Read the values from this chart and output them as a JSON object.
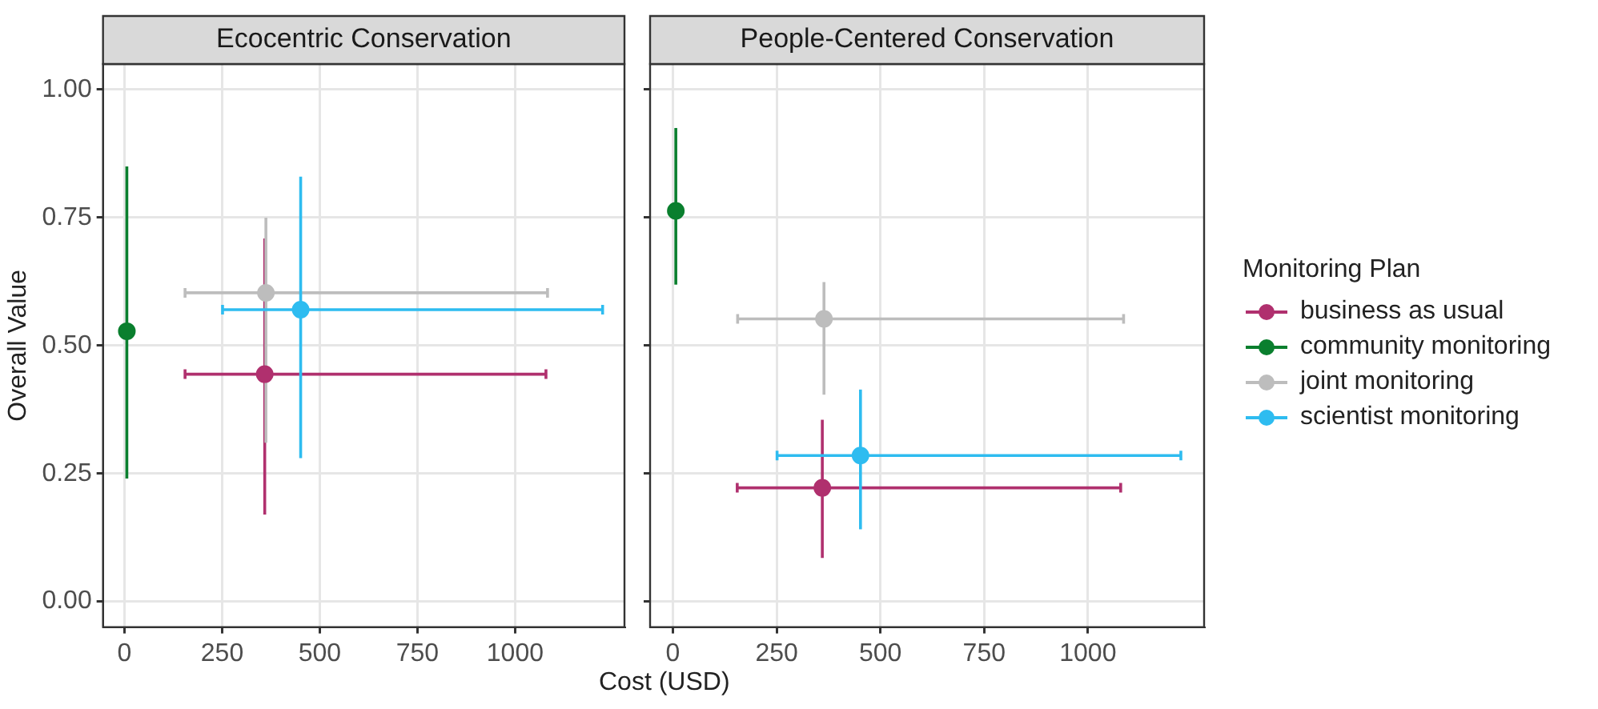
{
  "chart_data": [
    {
      "type": "scatter",
      "title": "Ecocentric Conservation",
      "xlabel": "Cost (USD)",
      "legend": "right",
      "legend_title": "Monitoring Plan",
      "ylabel": "Overall Value",
      "xlim": [
        -55,
        1280
      ],
      "ylim": [
        -0.05,
        1.05
      ],
      "xticks": [
        0,
        250,
        500,
        750,
        1000
      ],
      "yticks": [
        {
          "value": 0,
          "label": "0.00"
        },
        {
          "value": 0.25,
          "label": "0.25"
        },
        {
          "value": 0.5,
          "label": "0.50"
        },
        {
          "value": 0.75,
          "label": "0.75"
        },
        {
          "value": 1,
          "label": "1.00"
        }
      ],
      "grid": true,
      "marker": "circle",
      "series": [
        {
          "name": "business as usual",
          "color": "#b0306e",
          "x": [
            359
          ],
          "values": [
            0.444
          ],
          "errors": [
            [
              0.17,
              0.709
            ]
          ],
          "xerrors": [
            [
              155,
              1079
            ]
          ]
        },
        {
          "name": "community monitoring",
          "color": "#0a7f2e",
          "x": [
            6
          ],
          "values": [
            0.528
          ],
          "errors": [
            [
              0.24,
              0.85
            ]
          ],
          "xerrors": [
            null
          ]
        },
        {
          "name": "joint monitoring",
          "color": "#bdbdbd",
          "x": [
            362
          ],
          "values": [
            0.603
          ],
          "errors": [
            [
              0.31,
              0.75
            ]
          ],
          "xerrors": [
            [
              155,
              1083
            ]
          ]
        },
        {
          "name": "scientist monitoring",
          "color": "#2ebcf0",
          "x": [
            451
          ],
          "values": [
            0.57
          ],
          "errors": [
            [
              0.28,
              0.83
            ]
          ],
          "xerrors": [
            [
              251,
              1224
            ]
          ]
        }
      ]
    },
    {
      "type": "scatter",
      "title": "People-Centered Conservation",
      "xlim": [
        -55,
        1280
      ],
      "ylim": [
        -0.05,
        1.05
      ],
      "xticks": [
        0,
        250,
        500,
        750,
        1000
      ],
      "yticks": [
        {
          "value": 0,
          "label": null
        },
        {
          "value": 0.25,
          "label": null
        },
        {
          "value": 0.5,
          "label": null
        },
        {
          "value": 0.75,
          "label": null
        },
        {
          "value": 1,
          "label": null
        }
      ],
      "tick_labels": "x",
      "grid": true,
      "marker": "circle",
      "series": [
        {
          "color": "#b0306e",
          "x": [
            360
          ],
          "values": [
            0.222
          ],
          "errors": [
            [
              0.085,
              0.355
            ]
          ],
          "xerrors": [
            [
              155,
              1079
            ]
          ]
        },
        {
          "color": "#0a7f2e",
          "x": [
            7
          ],
          "values": [
            0.763
          ],
          "errors": [
            [
              0.619,
              0.925
            ]
          ],
          "xerrors": [
            null
          ]
        },
        {
          "color": "#bdbdbd",
          "x": [
            364
          ],
          "values": [
            0.552
          ],
          "errors": [
            [
              0.404,
              0.624
            ]
          ],
          "xerrors": [
            [
              156,
              1086
            ]
          ]
        },
        {
          "color": "#2ebcf0",
          "x": [
            452
          ],
          "values": [
            0.285
          ],
          "errors": [
            [
              0.141,
              0.414
            ]
          ],
          "xerrors": [
            [
              251,
              1224
            ]
          ]
        }
      ]
    }
  ]
}
